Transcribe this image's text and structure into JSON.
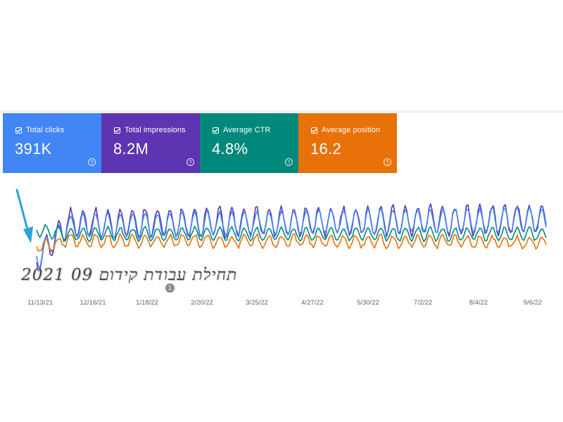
{
  "metrics": [
    {
      "label": "Total clicks",
      "value": "391K",
      "color": "#4285f4"
    },
    {
      "label": "Total impressions",
      "value": "8.2M",
      "color": "#5e35b1"
    },
    {
      "label": "Average CTR",
      "value": "4.8%",
      "color": "#00897b"
    },
    {
      "label": "Average position",
      "value": "16.2",
      "color": "#e8710a"
    }
  ],
  "help_glyph": "?",
  "annotation": {
    "text": "תחילת עבודת קידום 09 2021",
    "marker": "1"
  },
  "chart_data": {
    "type": "line",
    "title": "",
    "xlabel": "",
    "ylabel": "",
    "x_ticks": [
      "11/13/21",
      "12/16/21",
      "1/18/22",
      "2/20/22",
      "3/25/22",
      "4/27/22",
      "5/30/22",
      "7/2/22",
      "8/4/22",
      "9/6/22"
    ],
    "series": [
      {
        "metric": "impressions",
        "color": "#5e35b1"
      },
      {
        "metric": "clicks",
        "color": "#4285f4"
      },
      {
        "metric": "ctr",
        "color": "#00897b"
      },
      {
        "metric": "position",
        "color": "#e8710a"
      }
    ],
    "grid": false,
    "legend": "none"
  }
}
